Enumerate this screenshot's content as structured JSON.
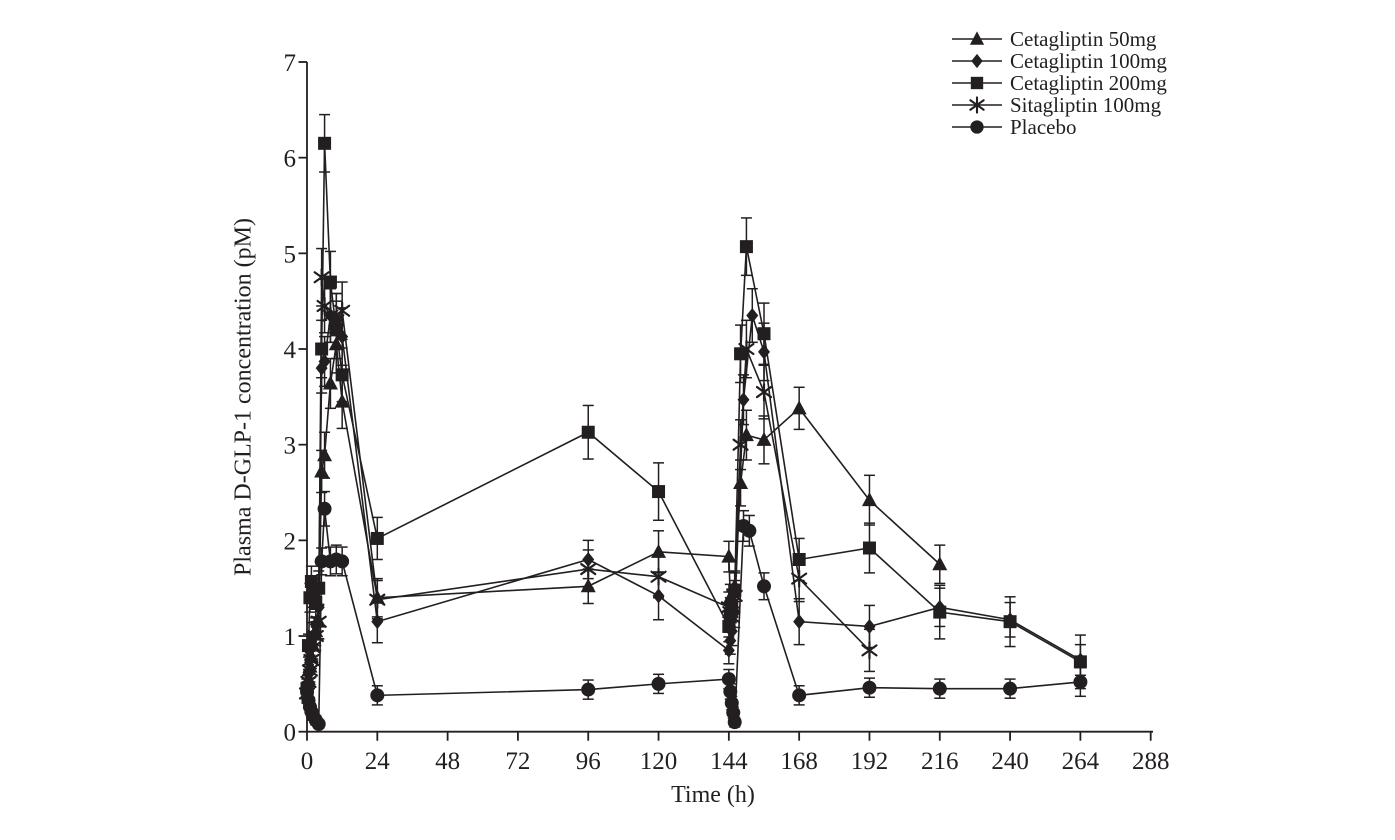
{
  "figure": {
    "background": "#ffffff",
    "ink_color": "#231f20"
  },
  "chart_data": {
    "type": "line",
    "title": "",
    "xlabel": "Time (h)",
    "ylabel": "Plasma D-GLP-1 concentration (pM)",
    "xlim": [
      0,
      288
    ],
    "ylim": [
      0,
      7
    ],
    "xticks": [
      0,
      24,
      48,
      72,
      96,
      120,
      144,
      168,
      192,
      216,
      240,
      264,
      288
    ],
    "yticks": [
      0,
      1,
      2,
      3,
      4,
      5,
      6,
      7
    ],
    "grid": false,
    "legend_position": "top-right",
    "error_bars": true,
    "series": [
      {
        "name": "Cetagliptin 50mg",
        "marker": "triangle",
        "points": [
          [
            0,
            0.4,
            0.1
          ],
          [
            0.5,
            0.55,
            0.1
          ],
          [
            1,
            0.68,
            0.12
          ],
          [
            1.5,
            0.78,
            0.12
          ],
          [
            2,
            0.9,
            0.14
          ],
          [
            3,
            1.05,
            0.15
          ],
          [
            4,
            1.15,
            0.18
          ],
          [
            5,
            2.72,
            0.22
          ],
          [
            6,
            2.89,
            0.24
          ],
          [
            8,
            3.64,
            0.26
          ],
          [
            10,
            4.05,
            0.3
          ],
          [
            12,
            3.45,
            0.28
          ],
          [
            24,
            1.4,
            0.2
          ],
          [
            96,
            1.52,
            0.18
          ],
          [
            120,
            1.88,
            0.22
          ],
          [
            144,
            1.83,
            0.16
          ],
          [
            144.5,
            1.4,
            0.14
          ],
          [
            145,
            1.35,
            0.14
          ],
          [
            146,
            1.52,
            0.16
          ],
          [
            148,
            2.6,
            0.24
          ],
          [
            150,
            3.1,
            0.26
          ],
          [
            156,
            3.05,
            0.25
          ],
          [
            168,
            3.38,
            0.22
          ],
          [
            192,
            2.42,
            0.26
          ],
          [
            216,
            1.75,
            0.2
          ]
        ]
      },
      {
        "name": "Cetagliptin 100mg",
        "marker": "diamond",
        "points": [
          [
            0,
            0.42,
            0.1
          ],
          [
            0.5,
            0.6,
            0.1
          ],
          [
            1,
            0.75,
            0.12
          ],
          [
            1.5,
            0.88,
            0.12
          ],
          [
            2,
            1.0,
            0.14
          ],
          [
            3,
            1.12,
            0.16
          ],
          [
            4,
            1.3,
            0.18
          ],
          [
            5,
            3.8,
            0.26
          ],
          [
            6,
            3.87,
            0.26
          ],
          [
            8,
            4.35,
            0.28
          ],
          [
            10,
            4.3,
            0.28
          ],
          [
            12,
            4.13,
            0.3
          ],
          [
            24,
            1.15,
            0.22
          ],
          [
            96,
            1.8,
            0.2
          ],
          [
            120,
            1.42,
            0.25
          ],
          [
            144,
            0.85,
            0.14
          ],
          [
            144.5,
            0.95,
            0.14
          ],
          [
            145,
            1.05,
            0.15
          ],
          [
            146,
            1.25,
            0.16
          ],
          [
            149,
            3.47,
            0.26
          ],
          [
            152,
            4.35,
            0.28
          ],
          [
            156,
            3.97,
            0.3
          ],
          [
            168,
            1.15,
            0.24
          ],
          [
            192,
            1.1,
            0.22
          ],
          [
            216,
            1.3,
            0.2
          ],
          [
            240,
            1.17,
            0.18
          ],
          [
            264,
            0.75,
            0.16
          ]
        ]
      },
      {
        "name": "Cetagliptin 200mg",
        "marker": "square",
        "points": [
          [
            0,
            0.45,
            0.1
          ],
          [
            0.5,
            0.9,
            0.12
          ],
          [
            1,
            1.4,
            0.15
          ],
          [
            1.5,
            1.57,
            0.16
          ],
          [
            2,
            1.45,
            0.15
          ],
          [
            3,
            1.35,
            0.16
          ],
          [
            4,
            1.5,
            0.18
          ],
          [
            5,
            4.0,
            0.3
          ],
          [
            6,
            6.15,
            0.3
          ],
          [
            8,
            4.7,
            0.32
          ],
          [
            10,
            4.2,
            0.3
          ],
          [
            12,
            3.73,
            0.28
          ],
          [
            24,
            2.02,
            0.22
          ],
          [
            96,
            3.13,
            0.28
          ],
          [
            120,
            2.51,
            0.3
          ],
          [
            144,
            1.1,
            0.16
          ],
          [
            144.5,
            1.2,
            0.16
          ],
          [
            145,
            1.32,
            0.16
          ],
          [
            146,
            1.48,
            0.18
          ],
          [
            148,
            3.95,
            0.3
          ],
          [
            150,
            5.07,
            0.3
          ],
          [
            156,
            4.16,
            0.32
          ],
          [
            168,
            1.8,
            0.22
          ],
          [
            192,
            1.92,
            0.26
          ],
          [
            216,
            1.25,
            0.28
          ],
          [
            240,
            1.15,
            0.26
          ],
          [
            264,
            0.73,
            0.28
          ]
        ]
      },
      {
        "name": "Sitagliptin 100mg",
        "marker": "star",
        "points": [
          [
            0,
            0.4,
            0.1
          ],
          [
            0.5,
            0.52,
            0.1
          ],
          [
            1,
            0.64,
            0.12
          ],
          [
            1.5,
            0.75,
            0.12
          ],
          [
            2,
            0.88,
            0.14
          ],
          [
            3,
            1.0,
            0.15
          ],
          [
            4,
            1.15,
            0.18
          ],
          [
            5,
            4.75,
            0.3
          ],
          [
            6,
            4.45,
            0.28
          ],
          [
            8,
            4.35,
            0.28
          ],
          [
            10,
            4.3,
            0.28
          ],
          [
            12,
            4.4,
            0.3
          ],
          [
            24,
            1.38,
            0.2
          ],
          [
            96,
            1.7,
            0.2
          ],
          [
            120,
            1.62,
            0.22
          ],
          [
            144,
            1.3,
            0.16
          ],
          [
            144.5,
            1.25,
            0.15
          ],
          [
            145,
            1.2,
            0.15
          ],
          [
            146,
            1.42,
            0.16
          ],
          [
            148,
            3.0,
            0.26
          ],
          [
            150,
            4.0,
            0.3
          ],
          [
            156,
            3.55,
            0.28
          ],
          [
            168,
            1.6,
            0.24
          ],
          [
            192,
            0.85,
            0.22
          ]
        ]
      },
      {
        "name": "Placebo",
        "marker": "circle",
        "points": [
          [
            0,
            0.42,
            0.08
          ],
          [
            0.5,
            0.33,
            0.07
          ],
          [
            1,
            0.26,
            0.06
          ],
          [
            1.5,
            0.21,
            0.06
          ],
          [
            2,
            0.17,
            0.05
          ],
          [
            3,
            0.12,
            0.05
          ],
          [
            4,
            0.08,
            0.04
          ],
          [
            5,
            1.78,
            0.14
          ],
          [
            6,
            2.33,
            0.18
          ],
          [
            8,
            1.78,
            0.15
          ],
          [
            10,
            1.8,
            0.15
          ],
          [
            12,
            1.78,
            0.15
          ],
          [
            24,
            0.38,
            0.1
          ],
          [
            96,
            0.44,
            0.1
          ],
          [
            120,
            0.5,
            0.1
          ],
          [
            144,
            0.55,
            0.1
          ],
          [
            144.5,
            0.42,
            0.08
          ],
          [
            145,
            0.3,
            0.07
          ],
          [
            145.5,
            0.2,
            0.06
          ],
          [
            146,
            0.1,
            0.05
          ],
          [
            149,
            2.15,
            0.16
          ],
          [
            151,
            2.1,
            0.16
          ],
          [
            156,
            1.52,
            0.14
          ],
          [
            168,
            0.38,
            0.1
          ],
          [
            192,
            0.46,
            0.1
          ],
          [
            216,
            0.45,
            0.1
          ],
          [
            240,
            0.45,
            0.1
          ],
          [
            264,
            0.52,
            0.15
          ]
        ]
      }
    ]
  }
}
